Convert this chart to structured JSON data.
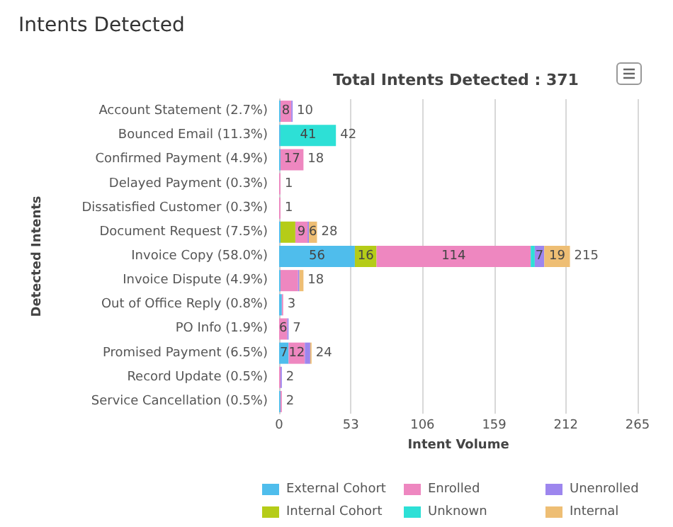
{
  "chart_data": {
    "type": "bar",
    "orientation": "horizontal",
    "stacked": true,
    "title": "Intents Detected",
    "subtitle": "Total Intents Detected : 371",
    "xlabel": "Intent Volume",
    "ylabel": "Detected Intents",
    "categories": [
      "Account Statement (2.7%)",
      "Bounced Email (11.3%)",
      "Confirmed Payment (4.9%)",
      "Delayed Payment (0.3%)",
      "Dissatisfied Customer (0.3%)",
      "Document Request (7.5%)",
      "Invoice Copy (58.0%)",
      "Invoice Dispute (4.9%)",
      "Out of Office Reply (0.8%)",
      "PO Info (1.9%)",
      "Promised Payment (6.5%)",
      "Record Update (0.5%)",
      "Service Cancellation (0.5%)"
    ],
    "series": [
      {
        "name": "External Cohort",
        "color": "#4fbdec",
        "values": [
          1,
          1,
          1,
          null,
          null,
          1,
          56,
          1,
          2,
          null,
          7,
          null,
          1
        ],
        "value_labels": [
          null,
          null,
          null,
          null,
          null,
          null,
          "56",
          null,
          null,
          null,
          "7",
          null,
          null
        ]
      },
      {
        "name": "Internal Cohort",
        "color": "#b5cc18",
        "values": [
          null,
          null,
          null,
          null,
          null,
          11,
          16,
          null,
          null,
          null,
          null,
          null,
          null
        ],
        "value_labels": [
          null,
          null,
          null,
          null,
          null,
          null,
          "16",
          null,
          null,
          null,
          null,
          null,
          null
        ]
      },
      {
        "name": "Enrolled",
        "color": "#ee87c0",
        "values": [
          8,
          null,
          17,
          1,
          1,
          9,
          114,
          13,
          1,
          6,
          12,
          1,
          1
        ],
        "value_labels": [
          "8",
          null,
          "17",
          null,
          null,
          "9",
          "114",
          null,
          null,
          "6",
          "12",
          null,
          null
        ]
      },
      {
        "name": "Unknown",
        "color": "#2de0d6",
        "values": [
          null,
          41,
          null,
          null,
          null,
          null,
          3,
          null,
          null,
          null,
          null,
          null,
          null
        ],
        "value_labels": [
          null,
          "41",
          null,
          null,
          null,
          null,
          null,
          null,
          null,
          null,
          null,
          null,
          null
        ]
      },
      {
        "name": "Unenrolled",
        "color": "#9d86ee",
        "values": [
          1,
          null,
          null,
          null,
          null,
          1,
          7,
          1,
          null,
          1,
          4,
          1,
          null
        ],
        "value_labels": [
          null,
          null,
          null,
          null,
          null,
          null,
          "7",
          null,
          null,
          null,
          null,
          null,
          null
        ]
      },
      {
        "name": "Internal",
        "color": "#eebe74",
        "values": [
          null,
          null,
          null,
          null,
          null,
          6,
          19,
          3,
          null,
          null,
          1,
          null,
          null
        ],
        "value_labels": [
          null,
          null,
          null,
          null,
          null,
          "6",
          "19",
          null,
          null,
          null,
          null,
          null,
          null
        ]
      }
    ],
    "totals": [
      "10",
      "42",
      "18",
      "1",
      "1",
      "28",
      "215",
      "18",
      "3",
      "7",
      "24",
      "2",
      "2"
    ],
    "xlim": [
      0,
      265
    ],
    "xticks": [
      0,
      53,
      106,
      159,
      212,
      265
    ],
    "grid": "x",
    "legend": "bottom"
  }
}
